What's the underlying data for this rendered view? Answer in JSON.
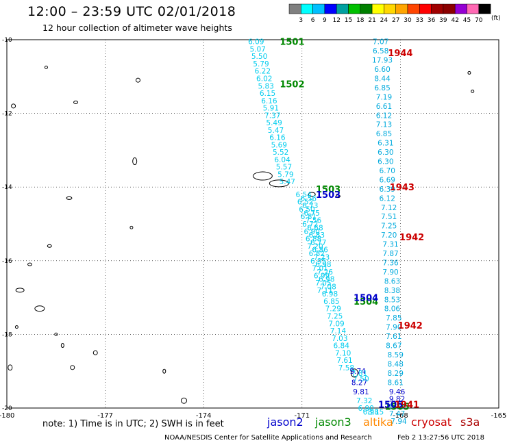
{
  "title": "12:00 – 23:59 UTC 02/01/2018",
  "subtitle": "12 hour collection of altimeter wave heights",
  "note": "note: 1) Time is in UTC; 2) SWH is in feet",
  "credit": "NOAA/NESDIS Center for Satellite Applications and Research",
  "timestamp": "Feb  2 13:27:56 UTC 2018",
  "legend": {
    "unit": "(ft)",
    "ticks": [
      "3",
      "6",
      "9",
      "12",
      "15",
      "18",
      "21",
      "24",
      "27",
      "30",
      "33",
      "36",
      "39",
      "42",
      "45",
      "70"
    ],
    "colors": [
      "#808080",
      "#00ffff",
      "#00bfff",
      "#0000ff",
      "#00a0a0",
      "#00c000",
      "#008000",
      "#ffff00",
      "#ffd700",
      "#ffa500",
      "#ff4500",
      "#ff0000",
      "#a00000",
      "#8b0000",
      "#9400d3",
      "#ff69b4",
      "#000000"
    ]
  },
  "satellites": [
    {
      "name": "jason2",
      "color": "#0000cc"
    },
    {
      "name": "jason3",
      "color": "#008800"
    },
    {
      "name": "altika",
      "color": "#ff8800"
    },
    {
      "name": "cryosat",
      "color": "#cc0000"
    },
    {
      "name": "s3a",
      "color": "#aa0000"
    }
  ],
  "chart_data": {
    "type": "scatter",
    "title": "12:00 – 23:59 UTC 02/01/2018",
    "subtitle": "12 hour collection of altimeter wave heights",
    "xlim": [
      -180,
      -165
    ],
    "ylim": [
      -20,
      -10
    ],
    "x_ticks": [
      "-180",
      "-177",
      "-174",
      "-171",
      "-168",
      "-165"
    ],
    "y_ticks": [
      "-10",
      "-12",
      "-14",
      "-16",
      "-18",
      "-20"
    ],
    "grid": true,
    "colors": {
      "light": "#00ccee",
      "med": "#00aadd",
      "dark": "#0000cc"
    },
    "series": [
      {
        "name": "jason3",
        "color": "#008800",
        "passes": [
          {
            "label": "1501",
            "lon": -171.3,
            "lat": -10.05
          },
          {
            "label": "1502",
            "lon": -171.3,
            "lat": -11.2
          },
          {
            "label": "1503",
            "lon": -170.2,
            "lat": -14.05
          },
          {
            "label": "1504",
            "lon": -169.05,
            "lat": -17.1
          },
          {
            "label": "1505",
            "lon": -168.1,
            "lat": -19.95
          }
        ]
      },
      {
        "name": "jason2",
        "color": "#0000cc",
        "passes": [
          {
            "label": "1503",
            "lon": -170.2,
            "lat": -14.2
          },
          {
            "label": "1504",
            "lon": -169.05,
            "lat": -17.0
          },
          {
            "label": "1505",
            "lon": -168.3,
            "lat": -19.9
          }
        ]
      },
      {
        "name": "cryosat",
        "color": "#cc0000",
        "passes": [
          {
            "label": "1944",
            "lon": -168.0,
            "lat": -10.35
          },
          {
            "label": "1943",
            "lon": -167.95,
            "lat": -14.0
          },
          {
            "label": "1942",
            "lon": -167.65,
            "lat": -15.35
          },
          {
            "label": "1942",
            "lon": -167.7,
            "lat": -17.75
          },
          {
            "label": "1941",
            "lon": -167.8,
            "lat": -19.9
          }
        ]
      }
    ],
    "tracks": [
      {
        "name": "jason3-a",
        "color": "light",
        "points": [
          {
            "lon": -172.4,
            "lat": -10.05,
            "v": "6.09"
          },
          {
            "lon": -172.35,
            "lat": -10.25,
            "v": "5.07"
          },
          {
            "lon": -172.3,
            "lat": -10.45,
            "v": "5.50"
          },
          {
            "lon": -172.25,
            "lat": -10.65,
            "v": "5.79"
          },
          {
            "lon": -172.2,
            "lat": -10.85,
            "v": "6.22"
          },
          {
            "lon": -172.15,
            "lat": -11.05,
            "v": "6.02"
          },
          {
            "lon": -172.1,
            "lat": -11.25,
            "v": "5.83"
          },
          {
            "lon": -172.05,
            "lat": -11.45,
            "v": "6.15"
          },
          {
            "lon": -172.0,
            "lat": -11.65,
            "v": "6.16"
          },
          {
            "lon": -171.95,
            "lat": -11.85,
            "v": "5.91"
          },
          {
            "lon": -171.9,
            "lat": -12.05,
            "v": "7.37"
          },
          {
            "lon": -171.85,
            "lat": -12.25,
            "v": "5.49"
          },
          {
            "lon": -171.8,
            "lat": -12.45,
            "v": "5.47"
          },
          {
            "lon": -171.75,
            "lat": -12.65,
            "v": "6.16"
          },
          {
            "lon": -171.7,
            "lat": -12.85,
            "v": "5.69"
          },
          {
            "lon": -171.65,
            "lat": -13.05,
            "v": "5.52"
          },
          {
            "lon": -171.6,
            "lat": -13.25,
            "v": "6.04"
          },
          {
            "lon": -171.55,
            "lat": -13.45,
            "v": "5.57"
          },
          {
            "lon": -171.5,
            "lat": -13.65,
            "v": "5.79"
          },
          {
            "lon": -171.45,
            "lat": -13.85,
            "v": "5.47"
          }
        ]
      },
      {
        "name": "cryosat-a",
        "color": "med",
        "points": [
          {
            "lon": -168.6,
            "lat": -10.05,
            "v": "7.07"
          },
          {
            "lon": -168.6,
            "lat": -10.3,
            "v": "6.58"
          },
          {
            "lon": -168.55,
            "lat": -10.55,
            "v": "17.93"
          },
          {
            "lon": -168.55,
            "lat": -10.8,
            "v": "6.60"
          },
          {
            "lon": -168.55,
            "lat": -11.05,
            "v": "8.44"
          },
          {
            "lon": -168.55,
            "lat": -11.3,
            "v": "6.85"
          },
          {
            "lon": -168.5,
            "lat": -11.55,
            "v": "7.19"
          },
          {
            "lon": -168.5,
            "lat": -11.8,
            "v": "6.61"
          },
          {
            "lon": -168.5,
            "lat": -12.05,
            "v": "6.12"
          },
          {
            "lon": -168.5,
            "lat": -12.3,
            "v": "7.13"
          },
          {
            "lon": -168.5,
            "lat": -12.55,
            "v": "6.85"
          },
          {
            "lon": -168.45,
            "lat": -12.8,
            "v": "6.31"
          },
          {
            "lon": -168.45,
            "lat": -13.05,
            "v": "6.30"
          },
          {
            "lon": -168.45,
            "lat": -13.3,
            "v": "6.30"
          },
          {
            "lon": -168.4,
            "lat": -13.55,
            "v": "6.70"
          },
          {
            "lon": -168.4,
            "lat": -13.8,
            "v": "6.69"
          },
          {
            "lon": -168.4,
            "lat": -14.05,
            "v": "6.39"
          },
          {
            "lon": -168.4,
            "lat": -14.3,
            "v": "6.12"
          },
          {
            "lon": -168.35,
            "lat": -14.55,
            "v": "7.12"
          },
          {
            "lon": -168.35,
            "lat": -14.8,
            "v": "7.51"
          },
          {
            "lon": -168.35,
            "lat": -15.05,
            "v": "7.25"
          },
          {
            "lon": -168.35,
            "lat": -15.3,
            "v": "7.20"
          },
          {
            "lon": -168.3,
            "lat": -15.55,
            "v": "7.31"
          },
          {
            "lon": -168.3,
            "lat": -15.8,
            "v": "7.87"
          },
          {
            "lon": -168.3,
            "lat": -16.05,
            "v": "7.36"
          },
          {
            "lon": -168.3,
            "lat": -16.3,
            "v": "7.90"
          },
          {
            "lon": -168.25,
            "lat": -16.55,
            "v": "8.63"
          },
          {
            "lon": -168.25,
            "lat": -16.8,
            "v": "8.38"
          },
          {
            "lon": -168.25,
            "lat": -17.05,
            "v": "8.53"
          },
          {
            "lon": -168.25,
            "lat": -17.3,
            "v": "8.06"
          },
          {
            "lon": -168.2,
            "lat": -17.55,
            "v": "7.85"
          },
          {
            "lon": -168.2,
            "lat": -17.8,
            "v": "7.90"
          },
          {
            "lon": -168.2,
            "lat": -18.05,
            "v": "7.61"
          },
          {
            "lon": -168.2,
            "lat": -18.3,
            "v": "8.67"
          },
          {
            "lon": -168.15,
            "lat": -18.55,
            "v": "8.59"
          },
          {
            "lon": -168.15,
            "lat": -18.8,
            "v": "8.48"
          },
          {
            "lon": -168.15,
            "lat": -19.05,
            "v": "8.29"
          },
          {
            "lon": -168.15,
            "lat": -19.3,
            "v": "8.61"
          }
        ]
      },
      {
        "name": "cryosat-b",
        "color": "dark",
        "points": [
          {
            "lon": -168.1,
            "lat": -19.55,
            "v": "9.46"
          },
          {
            "lon": -168.1,
            "lat": -19.75,
            "v": "9.82"
          }
        ]
      },
      {
        "name": "cryosat-c",
        "color": "med",
        "points": [
          {
            "lon": -168.1,
            "lat": -19.95,
            "v": "8.13"
          },
          {
            "lon": -168.1,
            "lat": -20.15,
            "v": "7.47"
          },
          {
            "lon": -168.05,
            "lat": -20.35,
            "v": "7.94"
          }
        ]
      },
      {
        "name": "jason2-dense",
        "color": "light",
        "points": [
          {
            "lon": -170.8,
            "lat": -14.3,
            "v": "6.56"
          },
          {
            "lon": -170.75,
            "lat": -14.5,
            "v": "6.73"
          },
          {
            "lon": -170.7,
            "lat": -14.7,
            "v": "6.75"
          },
          {
            "lon": -170.65,
            "lat": -14.9,
            "v": "7.56"
          },
          {
            "lon": -170.6,
            "lat": -15.1,
            "v": "6.68"
          },
          {
            "lon": -170.55,
            "lat": -15.3,
            "v": "6.83"
          },
          {
            "lon": -170.5,
            "lat": -15.5,
            "v": "6.77"
          },
          {
            "lon": -170.45,
            "lat": -15.7,
            "v": "6.86"
          },
          {
            "lon": -170.4,
            "lat": -15.9,
            "v": "7.23"
          },
          {
            "lon": -170.35,
            "lat": -16.1,
            "v": "6.98"
          },
          {
            "lon": -170.3,
            "lat": -16.3,
            "v": "7.26"
          },
          {
            "lon": -170.25,
            "lat": -16.5,
            "v": "6.98"
          },
          {
            "lon": -170.2,
            "lat": -16.7,
            "v": "7.08"
          },
          {
            "lon": -170.15,
            "lat": -16.9,
            "v": "6.98"
          },
          {
            "lon": -170.1,
            "lat": -17.1,
            "v": "6.85"
          },
          {
            "lon": -170.05,
            "lat": -17.3,
            "v": "7.29"
          },
          {
            "lon": -170.0,
            "lat": -17.5,
            "v": "7.25"
          },
          {
            "lon": -169.95,
            "lat": -17.7,
            "v": "7.09"
          },
          {
            "lon": -169.9,
            "lat": -17.9,
            "v": "7.14"
          },
          {
            "lon": -169.85,
            "lat": -18.1,
            "v": "7.03"
          },
          {
            "lon": -169.8,
            "lat": -18.3,
            "v": "6.84"
          },
          {
            "lon": -169.75,
            "lat": -18.5,
            "v": "7.10"
          },
          {
            "lon": -169.7,
            "lat": -18.7,
            "v": "7.61"
          },
          {
            "lon": -169.65,
            "lat": -18.9,
            "v": "7.58"
          }
        ]
      },
      {
        "name": "jason3-dense",
        "color": "light",
        "points": [
          {
            "lon": -170.95,
            "lat": -14.2,
            "v": "6.54"
          },
          {
            "lon": -170.9,
            "lat": -14.4,
            "v": "6.52"
          },
          {
            "lon": -170.85,
            "lat": -14.6,
            "v": "6.50"
          },
          {
            "lon": -170.8,
            "lat": -14.8,
            "v": "6.81"
          },
          {
            "lon": -170.75,
            "lat": -15.0,
            "v": "6.72"
          },
          {
            "lon": -170.7,
            "lat": -15.2,
            "v": "6.90"
          },
          {
            "lon": -170.65,
            "lat": -15.4,
            "v": "6.88"
          },
          {
            "lon": -170.6,
            "lat": -15.6,
            "v": "7.20"
          },
          {
            "lon": -170.55,
            "lat": -15.8,
            "v": "6.82"
          },
          {
            "lon": -170.5,
            "lat": -16.0,
            "v": "6.95"
          },
          {
            "lon": -170.45,
            "lat": -16.2,
            "v": "7.01"
          },
          {
            "lon": -170.4,
            "lat": -16.4,
            "v": "6.99"
          },
          {
            "lon": -170.35,
            "lat": -16.6,
            "v": "7.05"
          },
          {
            "lon": -170.3,
            "lat": -16.8,
            "v": "7.11"
          }
        ]
      },
      {
        "name": "jason2-dark",
        "color": "dark",
        "points": [
          {
            "lon": -169.3,
            "lat": -19.0,
            "v": "9.74"
          },
          {
            "lon": -169.25,
            "lat": -19.3,
            "v": "8.27"
          },
          {
            "lon": -169.2,
            "lat": -19.55,
            "v": "9.81"
          }
        ]
      },
      {
        "name": "jason2-tail",
        "color": "light",
        "points": [
          {
            "lon": -169.25,
            "lat": -19.05,
            "v": "7.81"
          },
          {
            "lon": -169.2,
            "lat": -19.2,
            "v": "7.50"
          },
          {
            "lon": -169.1,
            "lat": -19.8,
            "v": "7.32"
          },
          {
            "lon": -169.05,
            "lat": -20.0,
            "v": "6.90"
          },
          {
            "lon": -168.9,
            "lat": -20.1,
            "v": "6.98"
          },
          {
            "lon": -168.75,
            "lat": -20.1,
            "v": "8.15"
          }
        ]
      }
    ]
  }
}
